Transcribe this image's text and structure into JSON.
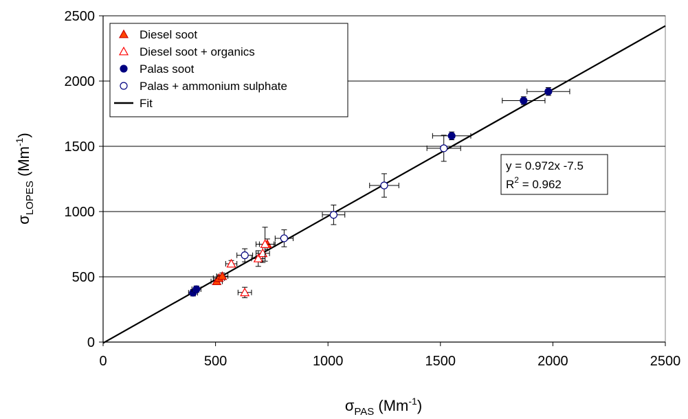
{
  "chart_data": {
    "type": "scatter",
    "title": "",
    "xlabel": {
      "main": "σ",
      "sub": "PAS",
      "unit_pre": " (Mm",
      "unit_sup": "-1",
      "unit_post": ")"
    },
    "ylabel": {
      "main": "σ",
      "sub": "LOPES",
      "unit_pre": " (Mm",
      "unit_sup": "-1",
      "unit_post": ")"
    },
    "xlim": [
      0,
      2500
    ],
    "ylim": [
      0,
      2500
    ],
    "xticks": [
      0,
      500,
      1000,
      1500,
      2000,
      2500
    ],
    "yticks": [
      0,
      500,
      1000,
      1500,
      2000,
      2500
    ],
    "grid": "horizontal",
    "legend_position": "top-left",
    "series": [
      {
        "name": "Diesel soot",
        "marker": "triangle-filled",
        "color": "#ff4500",
        "stroke": "#cc0000",
        "points": [
          {
            "x": 505,
            "y": 465,
            "xerr": 25,
            "yerr": 25
          },
          {
            "x": 515,
            "y": 490,
            "xerr": 25,
            "yerr": 25
          },
          {
            "x": 530,
            "y": 505,
            "xerr": 25,
            "yerr": 25
          },
          {
            "x": 730,
            "y": 750,
            "xerr": 35,
            "yerr": 40
          }
        ]
      },
      {
        "name": "Diesel soot + organics",
        "marker": "triangle-open",
        "color": "#ff0000",
        "stroke": "#ff0000",
        "points": [
          {
            "x": 570,
            "y": 600,
            "xerr": 25,
            "yerr": 25
          },
          {
            "x": 630,
            "y": 380,
            "xerr": 30,
            "yerr": 40
          },
          {
            "x": 690,
            "y": 640,
            "xerr": 30,
            "yerr": 60
          },
          {
            "x": 710,
            "y": 680,
            "xerr": 30,
            "yerr": 70
          },
          {
            "x": 720,
            "y": 750,
            "xerr": 40,
            "yerr": 130
          }
        ]
      },
      {
        "name": "Palas soot",
        "marker": "circle-filled",
        "color": "#000080",
        "stroke": "#000080",
        "points": [
          {
            "x": 400,
            "y": 378,
            "xerr": 20,
            "yerr": 25
          },
          {
            "x": 415,
            "y": 405,
            "xerr": 20,
            "yerr": 25
          },
          {
            "x": 1550,
            "y": 1580,
            "xerr": 85,
            "yerr": 30
          },
          {
            "x": 1870,
            "y": 1850,
            "xerr": 95,
            "yerr": 30
          },
          {
            "x": 1980,
            "y": 1920,
            "xerr": 95,
            "yerr": 30
          }
        ]
      },
      {
        "name": "Palas + ammonium sulphate",
        "marker": "circle-open",
        "color": "#ffffff",
        "stroke": "#000080",
        "points": [
          {
            "x": 630,
            "y": 665,
            "xerr": 35,
            "yerr": 50
          },
          {
            "x": 805,
            "y": 795,
            "xerr": 40,
            "yerr": 65
          },
          {
            "x": 1025,
            "y": 975,
            "xerr": 50,
            "yerr": 75
          },
          {
            "x": 1250,
            "y": 1200,
            "xerr": 65,
            "yerr": 90
          },
          {
            "x": 1515,
            "y": 1485,
            "xerr": 75,
            "yerr": 100
          }
        ]
      }
    ],
    "fit": {
      "name": "Fit",
      "slope": 0.972,
      "intercept": -7.5,
      "x_range": [
        0,
        2500
      ],
      "color": "#000000",
      "equation_text": "y = 0.972x -7.5",
      "r2_prefix": "R",
      "r2_sup": "2",
      "r2_value": " = 0.962"
    }
  }
}
